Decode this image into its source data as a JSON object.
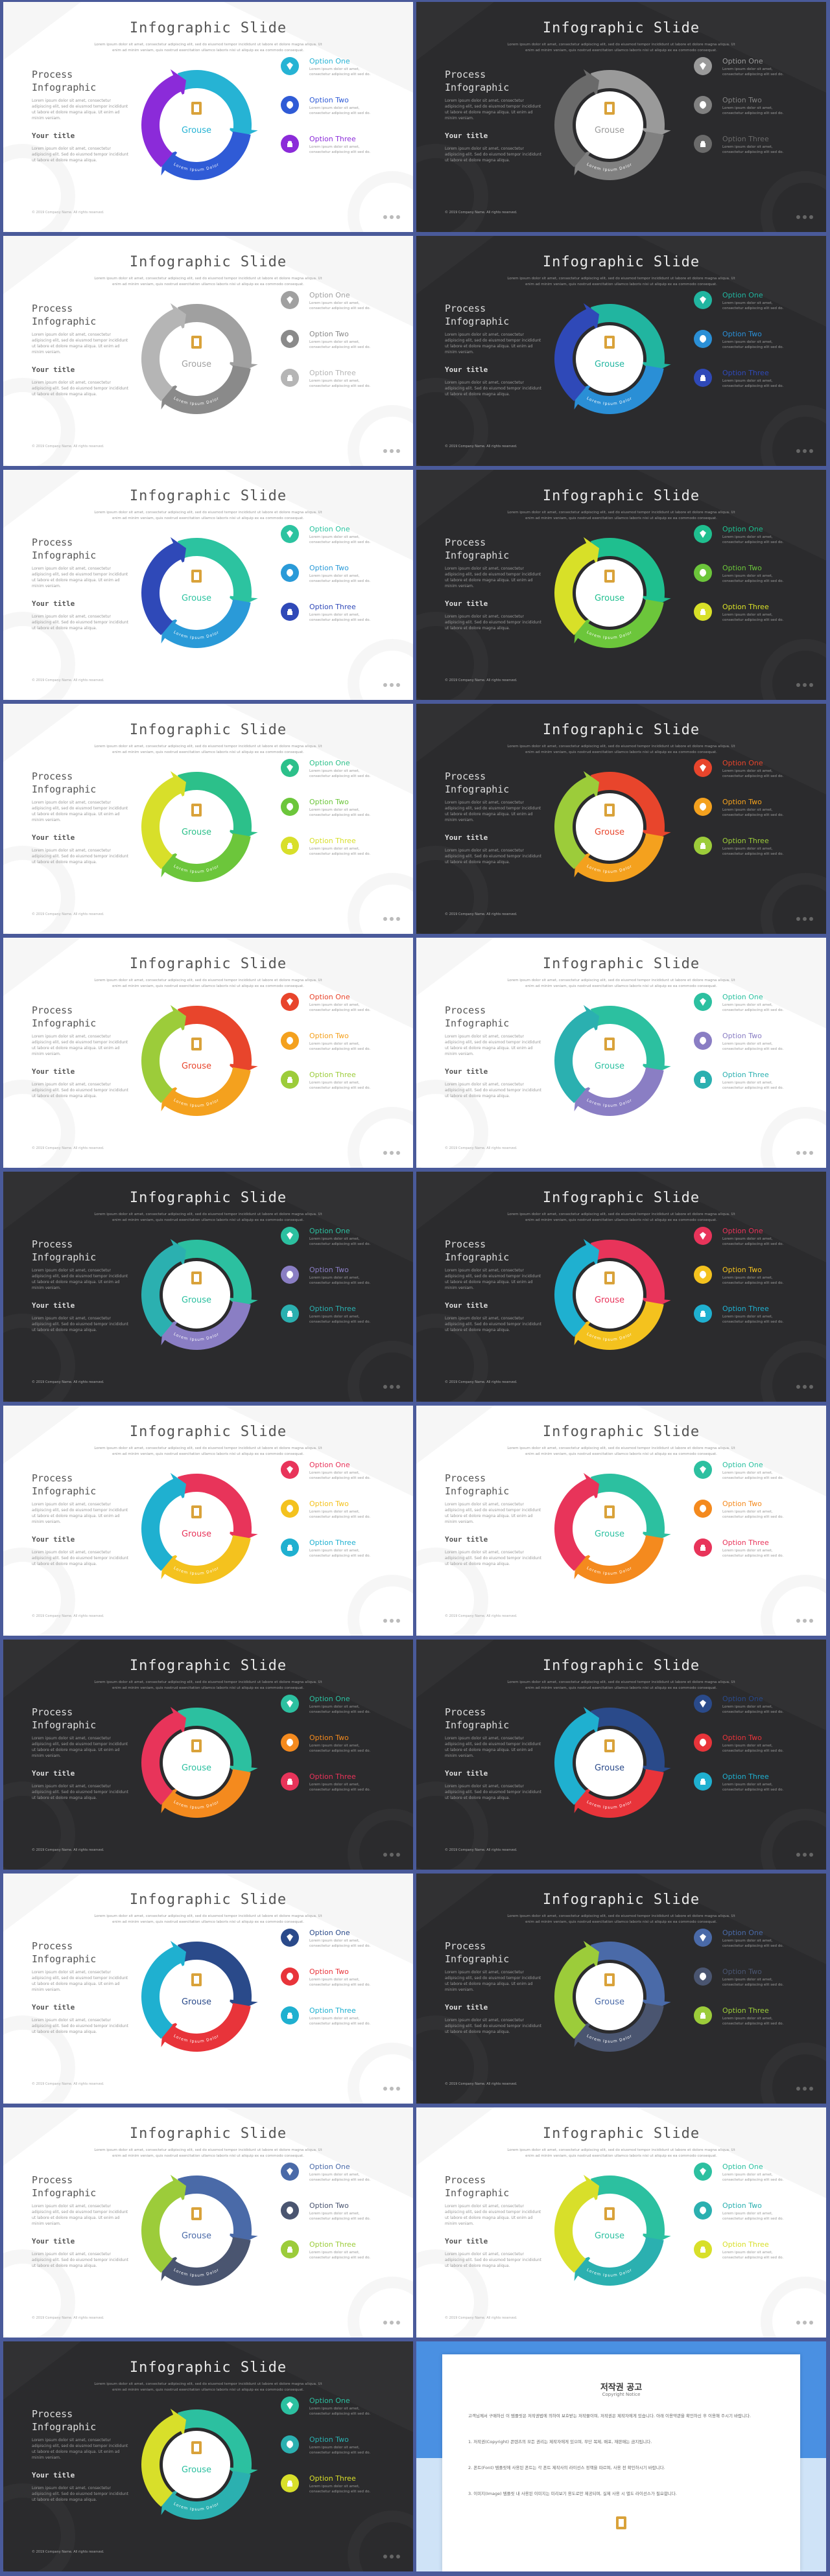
{
  "slide_text": {
    "title": "Infographic Slide",
    "subtitle": "Lorem ipsum dolor sit amet, consectetur adipiscing elit, sed do eiusmod tempor incididunt ut labore et dolore magna aliqua. Ut enim ad minim veniam, quis nostrud exercitation ullamco laboris nisi ut aliquip ex ea commodo consequat.",
    "left_title": "Process Infographic",
    "left_body": "Lorem ipsum dolor sit amet, consectetur adipiscing elit, sed do eiusmod tempor incididunt ut labore et dolore magna aliqua. Ut enim ad minim veniam.",
    "sub_title": "Your title",
    "sub_body": "Lorem ipsum dolor sit amet, consectetur adipiscing elit. Sed do eiusmod tempor incididunt ut labore et dolore magna aliqua.",
    "brand": "Grouse",
    "ring_text": "Lorem Ipsum Dolor",
    "options": [
      {
        "label": "Option One",
        "text": "Lorem ipsum dolor sit amet, consectetur adipiscing elit sed do."
      },
      {
        "label": "Option Two",
        "text": "Lorem ipsum dolor sit amet, consectetur adipiscing elit sed do."
      },
      {
        "label": "Option Three",
        "text": "Lorem ipsum dolor sit amet, consectetur adipiscing elit sed do."
      }
    ],
    "footer": "© 2019 Company Name. All rights reserved."
  },
  "slides": [
    {
      "theme": "light",
      "colors": [
        "#26b3d4",
        "#2f5bd6",
        "#8b2bd9"
      ]
    },
    {
      "theme": "dark",
      "colors": [
        "#9a9a9a",
        "#808080",
        "#6a6a6a"
      ]
    },
    {
      "theme": "light",
      "colors": [
        "#a0a0a0",
        "#8a8a8a",
        "#b5b5b5"
      ]
    },
    {
      "theme": "dark",
      "colors": [
        "#21b5a0",
        "#2a8fd6",
        "#2f49b8"
      ]
    },
    {
      "theme": "light",
      "colors": [
        "#2cc3a0",
        "#2a9ad8",
        "#2f49b8"
      ]
    },
    {
      "theme": "dark",
      "colors": [
        "#1fbf8f",
        "#6cc63b",
        "#d8e028"
      ]
    },
    {
      "theme": "light",
      "colors": [
        "#2cc08a",
        "#6cc63b",
        "#d8df2a"
      ]
    },
    {
      "theme": "dark",
      "colors": [
        "#e8452c",
        "#f4a11e",
        "#9ccc3a"
      ]
    },
    {
      "theme": "light",
      "colors": [
        "#e8452c",
        "#f4a11e",
        "#9ccc3a"
      ]
    },
    {
      "theme": "light",
      "colors": [
        "#2cc0a0",
        "#8a7ec4",
        "#2bb0b0"
      ]
    },
    {
      "theme": "dark",
      "colors": [
        "#2cc0a0",
        "#8a7ec4",
        "#2bb0b0"
      ]
    },
    {
      "theme": "dark",
      "colors": [
        "#e8345a",
        "#f4c21e",
        "#1fb0d0"
      ]
    },
    {
      "theme": "light",
      "colors": [
        "#e8345a",
        "#f4c21e",
        "#1fb0d0"
      ]
    },
    {
      "theme": "light",
      "colors": [
        "#2cc0a0",
        "#f48a1e",
        "#e8345a"
      ]
    },
    {
      "theme": "dark",
      "colors": [
        "#2cc0a0",
        "#f48a1e",
        "#e8345a"
      ]
    },
    {
      "theme": "dark",
      "colors": [
        "#2a4a8a",
        "#e8343a",
        "#1fb0d0"
      ]
    },
    {
      "theme": "light",
      "colors": [
        "#2a4a8a",
        "#e8343a",
        "#1fb0d0"
      ]
    },
    {
      "theme": "dark",
      "colors": [
        "#4a6aa8",
        "#4a5570",
        "#9ccc3a"
      ]
    },
    {
      "theme": "light",
      "colors": [
        "#4a6aa8",
        "#4a5570",
        "#9ccc3a"
      ]
    },
    {
      "theme": "light",
      "colors": [
        "#2cc0a0",
        "#2bb0b0",
        "#d8df2a"
      ]
    },
    {
      "theme": "dark",
      "colors": [
        "#2cc0a0",
        "#2bb0b0",
        "#d8df2a"
      ]
    }
  ],
  "copyright": {
    "title": "저작권 공고",
    "subtitle": "Copyright Notice",
    "paragraphs": [
      "고객님께서 구매하신 이 템플릿은 저작권법에 의하여 보호받는 저작물이며, 저작권은 제작자에게 있습니다. 아래 이용약관을 확인하신 후 이용해 주시기 바랍니다.",
      "1. 저작권(Copyright) 콘텐츠의 모든 권리는 제작자에게 있으며, 무단 복제, 배포, 재판매는 금지됩니다.",
      "2. 폰트(Font) 템플릿에 사용된 폰트는 각 폰트 제작사의 라이선스 정책을 따르며, 사용 전 확인하시기 바랍니다.",
      "3. 이미지(Image) 템플릿 내 사용된 이미지는 미리보기 용도로만 제공되며, 실제 사용 시 별도 라이선스가 필요합니다."
    ]
  }
}
